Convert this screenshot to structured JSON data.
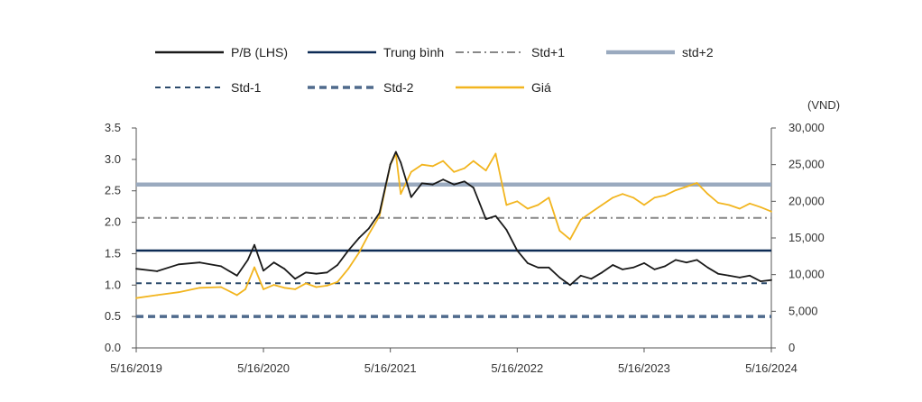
{
  "chart_data": {
    "type": "line",
    "title": "",
    "right_unit": "(VND)",
    "x_ticks": [
      "5/16/2019",
      "5/16/2020",
      "5/16/2021",
      "5/16/2022",
      "5/16/2023",
      "5/16/2024"
    ],
    "left_axis": {
      "ticks": [
        "0.0",
        "0.5",
        "1.0",
        "1.5",
        "2.0",
        "2.5",
        "3.0",
        "3.5"
      ],
      "ylim": [
        0,
        3.5
      ]
    },
    "right_axis": {
      "ticks": [
        "0",
        "5,000",
        "10,000",
        "15,000",
        "20,000",
        "25,000",
        "30,000"
      ],
      "ylim": [
        0,
        30000
      ]
    },
    "series": [
      {
        "name": "P/B (LHS)",
        "axis": "left",
        "color": "#1a1a1a",
        "style": "solid",
        "x": [
          "2019-05-16",
          "2019-07-15",
          "2019-09-15",
          "2019-11-15",
          "2020-01-15",
          "2020-03-01",
          "2020-04-01",
          "2020-04-20",
          "2020-05-16",
          "2020-06-15",
          "2020-07-15",
          "2020-08-15",
          "2020-09-15",
          "2020-10-15",
          "2020-11-15",
          "2020-12-15",
          "2021-01-15",
          "2021-02-15",
          "2021-03-15",
          "2021-04-15",
          "2021-05-16",
          "2021-06-01",
          "2021-06-15",
          "2021-07-15",
          "2021-08-15",
          "2021-09-15",
          "2021-10-15",
          "2021-11-15",
          "2021-12-15",
          "2022-01-10",
          "2022-02-15",
          "2022-03-15",
          "2022-04-15",
          "2022-05-16",
          "2022-06-15",
          "2022-07-15",
          "2022-08-15",
          "2022-09-15",
          "2022-10-15",
          "2022-11-15",
          "2022-12-15",
          "2023-01-15",
          "2023-02-15",
          "2023-03-15",
          "2023-04-15",
          "2023-05-16",
          "2023-06-15",
          "2023-07-15",
          "2023-08-15",
          "2023-09-15",
          "2023-10-15",
          "2023-11-15",
          "2023-12-15",
          "2024-01-15",
          "2024-02-15",
          "2024-03-15",
          "2024-04-15",
          "2024-05-16"
        ],
        "values": [
          1.26,
          1.22,
          1.33,
          1.36,
          1.3,
          1.15,
          1.4,
          1.64,
          1.23,
          1.36,
          1.26,
          1.1,
          1.2,
          1.18,
          1.2,
          1.32,
          1.55,
          1.75,
          1.9,
          2.15,
          2.92,
          3.12,
          2.95,
          2.4,
          2.62,
          2.6,
          2.68,
          2.6,
          2.65,
          2.55,
          2.05,
          2.1,
          1.88,
          1.55,
          1.35,
          1.28,
          1.28,
          1.12,
          1.0,
          1.15,
          1.1,
          1.2,
          1.32,
          1.25,
          1.28,
          1.35,
          1.25,
          1.3,
          1.4,
          1.36,
          1.4,
          1.28,
          1.18,
          1.15,
          1.12,
          1.15,
          1.06,
          1.08
        ]
      },
      {
        "name": "Trung bình",
        "axis": "left",
        "color": "#0d2b55",
        "style": "solid",
        "value": 1.55
      },
      {
        "name": "Std+1",
        "axis": "left",
        "color": "#888888",
        "style": "dashdot",
        "value": 2.07
      },
      {
        "name": "std+2",
        "axis": "left",
        "color": "#9aaabf",
        "style": "thick",
        "value": 2.6
      },
      {
        "name": "Std-1",
        "axis": "left",
        "color": "#2b4a6b",
        "style": "dashed",
        "value": 1.03
      },
      {
        "name": "Std-2",
        "axis": "left",
        "color": "#4f6a8c",
        "style": "thickdashed",
        "value": 0.5
      },
      {
        "name": "Giá",
        "axis": "right",
        "color": "#f2b51f",
        "style": "solid",
        "x": [
          "2019-05-16",
          "2019-07-15",
          "2019-09-15",
          "2019-11-15",
          "2020-01-15",
          "2020-03-01",
          "2020-03-25",
          "2020-04-20",
          "2020-05-16",
          "2020-06-15",
          "2020-07-15",
          "2020-08-15",
          "2020-09-15",
          "2020-10-15",
          "2020-11-15",
          "2020-12-15",
          "2021-01-15",
          "2021-02-15",
          "2021-03-15",
          "2021-04-15",
          "2021-05-16",
          "2021-06-01",
          "2021-06-15",
          "2021-07-15",
          "2021-08-15",
          "2021-09-15",
          "2021-10-15",
          "2021-11-15",
          "2021-12-15",
          "2022-01-10",
          "2022-02-15",
          "2022-03-15",
          "2022-04-15",
          "2022-05-16",
          "2022-06-15",
          "2022-07-15",
          "2022-08-15",
          "2022-09-15",
          "2022-10-15",
          "2022-11-15",
          "2022-12-15",
          "2023-01-15",
          "2023-02-15",
          "2023-03-15",
          "2023-04-15",
          "2023-05-16",
          "2023-06-15",
          "2023-07-15",
          "2023-08-15",
          "2023-09-15",
          "2023-10-15",
          "2023-11-15",
          "2023-12-15",
          "2024-01-15",
          "2024-02-15",
          "2024-03-15",
          "2024-04-15",
          "2024-05-16"
        ],
        "values": [
          6800,
          7200,
          7600,
          8200,
          8300,
          7200,
          8000,
          11000,
          8000,
          8600,
          8200,
          8000,
          8800,
          8300,
          8500,
          9000,
          10800,
          13000,
          15500,
          18000,
          25000,
          26500,
          21000,
          24000,
          25000,
          24800,
          25500,
          24000,
          24500,
          25500,
          24200,
          26500,
          19500,
          20000,
          19000,
          19500,
          20500,
          16000,
          14800,
          17500,
          18500,
          19500,
          20500,
          21000,
          20500,
          19500,
          20500,
          20800,
          21500,
          22000,
          22500,
          21000,
          19800,
          19500,
          19000,
          19700,
          19200,
          18600
        ]
      }
    ]
  }
}
